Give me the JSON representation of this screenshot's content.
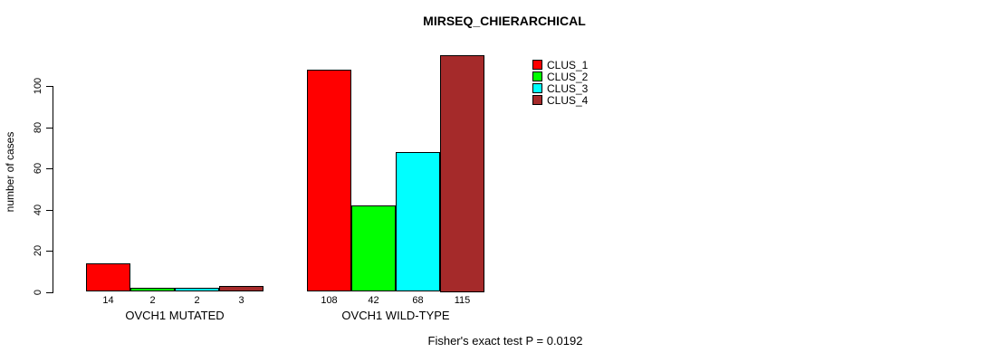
{
  "title": "MIRSEQ_CHIERARCHICAL",
  "ylabel": "number of cases",
  "footer": "Fisher's exact test P = 0.0192",
  "chart_data": {
    "type": "bar",
    "title": "MIRSEQ_CHIERARCHICAL",
    "xlabel": "",
    "ylabel": "number of cases",
    "ylim": [
      0,
      115
    ],
    "yticks": [
      0,
      20,
      40,
      60,
      80,
      100
    ],
    "grid": false,
    "legend_position": "top-right",
    "categories": [
      "OVCH1 MUTATED",
      "OVCH1 WILD-TYPE"
    ],
    "series": [
      {
        "name": "CLUS_1",
        "color": "#ff0000",
        "values": [
          14,
          108
        ]
      },
      {
        "name": "CLUS_2",
        "color": "#00ff00",
        "values": [
          2,
          42
        ]
      },
      {
        "name": "CLUS_3",
        "color": "#00ffff",
        "values": [
          2,
          68
        ]
      },
      {
        "name": "CLUS_4",
        "color": "#a52a2a",
        "values": [
          3,
          115
        ]
      }
    ],
    "bar_value_labels": [
      [
        "14",
        "2",
        "2",
        "3"
      ],
      [
        "108",
        "42",
        "68",
        "115"
      ]
    ],
    "annotation": "Fisher's exact test P = 0.0192"
  }
}
